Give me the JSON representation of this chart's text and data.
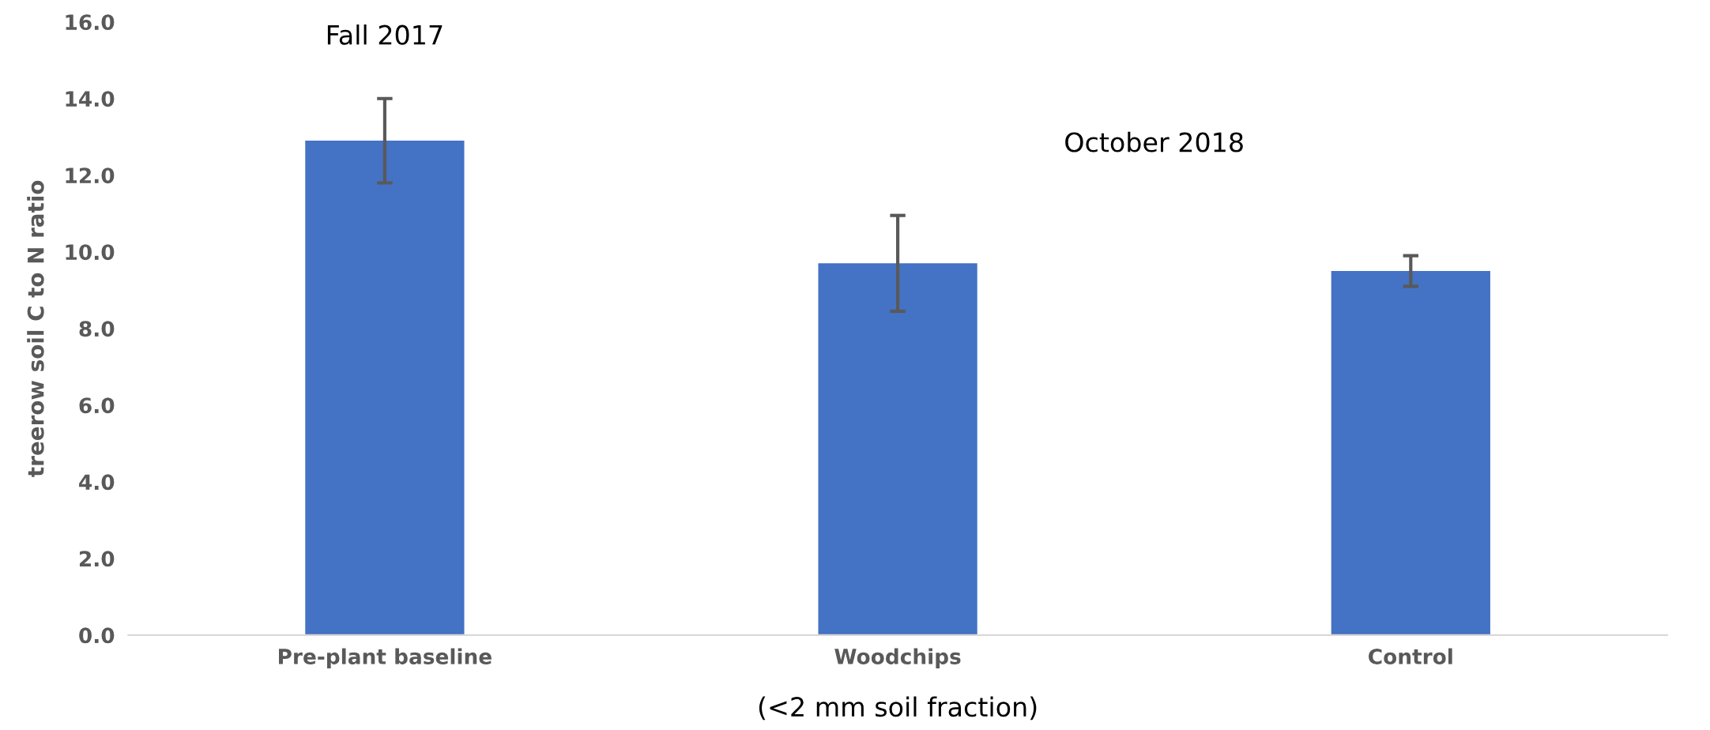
{
  "chart_data": {
    "type": "bar",
    "ylabel": "treerow soil C to N ratio",
    "categories": [
      "Pre-plant baseline",
      "Woodchips",
      "Control"
    ],
    "values": [
      12.9,
      9.7,
      9.5
    ],
    "errors": [
      1.1,
      1.25,
      0.4
    ],
    "color": "#4472c4",
    "ylim": [
      0,
      16
    ],
    "yticks": [
      {
        "value": 0,
        "label": "0.0"
      },
      {
        "value": 2,
        "label": "2.0"
      },
      {
        "value": 4,
        "label": "4.0"
      },
      {
        "value": 6,
        "label": "6.0"
      },
      {
        "value": 8,
        "label": "8.0"
      },
      {
        "value": 10,
        "label": "10.0"
      },
      {
        "value": 12,
        "label": "12.0"
      },
      {
        "value": 14,
        "label": "14.0"
      },
      {
        "value": 16,
        "label": "16.0"
      }
    ],
    "grid": false,
    "annotations": [
      "Fall 2017",
      "October 2018",
      "(<2 mm soil fraction)"
    ]
  }
}
